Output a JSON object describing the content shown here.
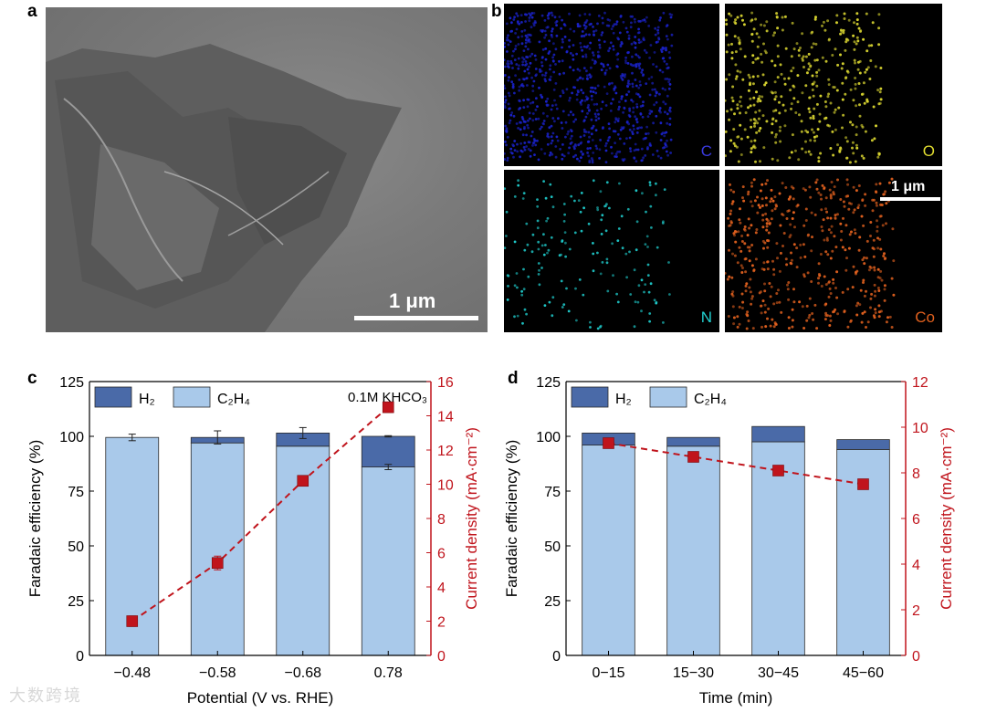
{
  "panels": {
    "a": {
      "letter": "a",
      "scale_text": "1 μm"
    },
    "b": {
      "letter": "b",
      "tiles": [
        {
          "element": "C",
          "color": "#1a22c8"
        },
        {
          "element": "O",
          "color": "#d8d430"
        },
        {
          "element": "N",
          "color": "#1ec8c8"
        },
        {
          "element": "Co",
          "color": "#e0601e"
        }
      ],
      "scale_text": "1 μm"
    },
    "c": {
      "letter": "c"
    },
    "d": {
      "letter": "d"
    }
  },
  "colors": {
    "h2": "#4a6aa8",
    "c2h4": "#a9c9ea",
    "current": "#c0141c"
  },
  "watermark": "大数跨境",
  "chart_data": [
    {
      "panel": "c",
      "type": "bar",
      "stacked": true,
      "xlabel": "Potential (V vs. RHE)",
      "ylabel": "Faradaic efficiency (%)",
      "y2label": "Current density (mA·cm⁻²)",
      "annotation": "0.1M KHCO₃",
      "categories": [
        "−0.48",
        "−0.58",
        "−0.68",
        "0.78"
      ],
      "ylim": [
        0,
        125
      ],
      "yticks": [
        0,
        25,
        50,
        75,
        100,
        125
      ],
      "y2lim": [
        0,
        16
      ],
      "y2ticks": [
        0,
        2,
        4,
        6,
        8,
        10,
        12,
        14,
        16
      ],
      "legend": [
        "H₂",
        "C₂H₄"
      ],
      "series": [
        {
          "name": "C₂H₄",
          "values": [
            99.5,
            97,
            95.5,
            86
          ],
          "errors": [
            0,
            0,
            0,
            1.2
          ]
        },
        {
          "name": "H₂",
          "values": [
            0,
            2.5,
            6,
            14
          ],
          "errors": [
            1.5,
            3,
            2.5,
            0.3
          ]
        }
      ],
      "line": {
        "values": [
          2.0,
          5.4,
          10.2,
          14.5
        ],
        "errors": [
          0.3,
          0.4,
          0.3,
          0.3
        ]
      },
      "grid": false,
      "legend_position": "top-left"
    },
    {
      "panel": "d",
      "type": "bar",
      "stacked": true,
      "xlabel": "Time (min)",
      "ylabel": "Faradaic efficiency (%)",
      "y2label": "Current density (mA·cm⁻²)",
      "categories": [
        "0−15",
        "15−30",
        "30−45",
        "45−60"
      ],
      "ylim": [
        0,
        125
      ],
      "yticks": [
        0,
        25,
        50,
        75,
        100,
        125
      ],
      "y2lim": [
        0,
        12
      ],
      "y2ticks": [
        0,
        2,
        4,
        6,
        8,
        10,
        12
      ],
      "legend": [
        "H₂",
        "C₂H₄"
      ],
      "series": [
        {
          "name": "C₂H₄",
          "values": [
            96,
            95.5,
            97.5,
            94
          ]
        },
        {
          "name": "H₂",
          "values": [
            5.5,
            4,
            7,
            4.5
          ]
        }
      ],
      "line": {
        "values": [
          9.3,
          8.7,
          8.1,
          7.5
        ]
      },
      "grid": false,
      "legend_position": "top-left"
    }
  ]
}
